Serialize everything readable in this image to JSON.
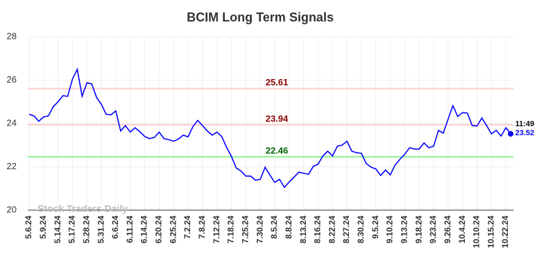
{
  "chart_data": {
    "type": "line",
    "title": "BCIM Long Term Signals",
    "categories": [
      "5.6.24",
      null,
      null,
      "5.9.24",
      null,
      null,
      "5.14.24",
      null,
      null,
      "5.17.24",
      null,
      null,
      "5.28.24",
      null,
      null,
      "5.31.24",
      null,
      null,
      "6.6.24",
      null,
      null,
      "6.11.24",
      null,
      null,
      "6.14.24",
      null,
      null,
      "6.20.24",
      null,
      null,
      "6.25.24",
      null,
      null,
      "7.2.24",
      null,
      null,
      "7.8.24",
      null,
      null,
      "7.12.24",
      null,
      null,
      "7.18.24",
      null,
      null,
      "7.25.24",
      null,
      null,
      "7.30.24",
      null,
      null,
      "8.5.24",
      null,
      null,
      "8.8.24",
      null,
      null,
      "8.13.24",
      null,
      null,
      "8.16.24",
      null,
      null,
      "8.22.24",
      null,
      null,
      "8.27.24",
      null,
      null,
      "8.30.24",
      null,
      null,
      "9.5.24",
      null,
      null,
      "9.10.24",
      null,
      null,
      "9.13.24",
      null,
      null,
      "9.18.24",
      null,
      null,
      "9.23.24",
      null,
      null,
      "9.26.24",
      null,
      null,
      "10.4.24",
      null,
      null,
      "10.10.24",
      null,
      null,
      "10.15.24",
      null,
      null,
      "10.22.24",
      null
    ],
    "values": [
      24.42,
      24.35,
      24.1,
      24.3,
      24.35,
      24.77,
      25.0,
      25.28,
      25.25,
      26.05,
      26.5,
      25.25,
      25.88,
      25.82,
      25.2,
      24.88,
      24.42,
      24.4,
      24.58,
      23.65,
      23.9,
      23.6,
      23.8,
      23.62,
      23.4,
      23.3,
      23.35,
      23.6,
      23.3,
      23.25,
      23.18,
      23.28,
      23.46,
      23.38,
      23.85,
      24.14,
      23.9,
      23.65,
      23.46,
      23.6,
      23.4,
      22.9,
      22.48,
      21.95,
      21.8,
      21.57,
      21.57,
      21.38,
      21.42,
      21.98,
      21.62,
      21.28,
      21.42,
      21.05,
      21.3,
      21.52,
      21.75,
      21.7,
      21.65,
      22.02,
      22.12,
      22.5,
      22.72,
      22.5,
      22.95,
      23.0,
      23.18,
      22.72,
      22.65,
      22.62,
      22.15,
      21.98,
      21.9,
      21.6,
      21.85,
      21.63,
      22.08,
      22.35,
      22.58,
      22.88,
      22.82,
      22.82,
      23.1,
      22.88,
      22.95,
      23.68,
      23.55,
      24.2,
      24.82,
      24.32,
      24.5,
      24.48,
      23.9,
      23.88,
      24.25,
      23.9,
      23.52,
      23.68,
      23.42,
      23.8,
      23.52
    ],
    "color": "#0000ff",
    "ylim": [
      20,
      28
    ],
    "yticks": [
      20,
      22,
      24,
      26,
      28
    ],
    "grid": true,
    "reference_lines": [
      {
        "value": 25.61,
        "color": "#ffcccc",
        "label_color": "#8b0000"
      },
      {
        "value": 23.94,
        "color": "#ffcccc",
        "label_color": "#8b0000"
      },
      {
        "value": 22.46,
        "color": "#90ee90",
        "label_color": "#006400"
      }
    ],
    "last_time": "11:49",
    "watermark": "Stock Traders Daily"
  }
}
